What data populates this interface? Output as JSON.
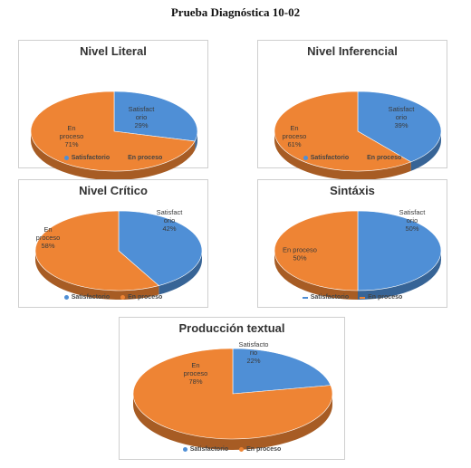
{
  "page_title": "Prueba Diagnóstica 10-02",
  "colors": {
    "satisfactorio": "#4f8fd6",
    "en_proceso": "#ee8434"
  },
  "chart_data": [
    {
      "type": "pie",
      "title": "Nivel Literal",
      "categories": [
        "Satisfactorio",
        "En proceso"
      ],
      "values": [
        29,
        71
      ],
      "labels": [
        [
          "Satisfact",
          "orio",
          "29%"
        ],
        [
          "En",
          "proceso",
          "71%"
        ]
      ],
      "legend": [
        "Satisfactorio",
        "En proceso"
      ],
      "legend_style": "dot"
    },
    {
      "type": "pie",
      "title": "Nivel Inferencial",
      "categories": [
        "Satisfactorio",
        "En proceso"
      ],
      "values": [
        39,
        61
      ],
      "labels": [
        [
          "Satisfact",
          "orio",
          "39%"
        ],
        [
          "En",
          "proceso",
          "61%"
        ]
      ],
      "legend": [
        "Satisfactorio",
        "En proceso"
      ],
      "legend_style": "dot"
    },
    {
      "type": "pie",
      "title": "Nivel Crítico",
      "categories": [
        "Satisfactorio",
        "En proceso"
      ],
      "values": [
        42,
        58
      ],
      "labels": [
        [
          "Satisfact",
          "orio",
          "42%"
        ],
        [
          "En",
          "proceso",
          "58%"
        ]
      ],
      "legend": [
        "Satisfactorio",
        "En proceso"
      ],
      "legend_style": "dot"
    },
    {
      "type": "pie",
      "title": "Sintáxis",
      "categories": [
        "Satisfactorio",
        "En proceso"
      ],
      "values": [
        50,
        50
      ],
      "labels": [
        [
          "Satisfact",
          "orio",
          "50%"
        ],
        [
          "En proceso",
          "50%"
        ]
      ],
      "legend": [
        "Satisfactorio",
        "En proceso"
      ],
      "legend_style": "line"
    },
    {
      "type": "pie",
      "title": "Producción textual",
      "categories": [
        "Satisfactorio",
        "En proceso"
      ],
      "values": [
        22,
        78
      ],
      "labels": [
        [
          "Satisfacto",
          "rio",
          "22%"
        ],
        [
          "En",
          "proceso",
          "78%"
        ]
      ],
      "legend": [
        "Satisfactorio",
        "En proceso"
      ],
      "legend_style": "dot"
    }
  ]
}
